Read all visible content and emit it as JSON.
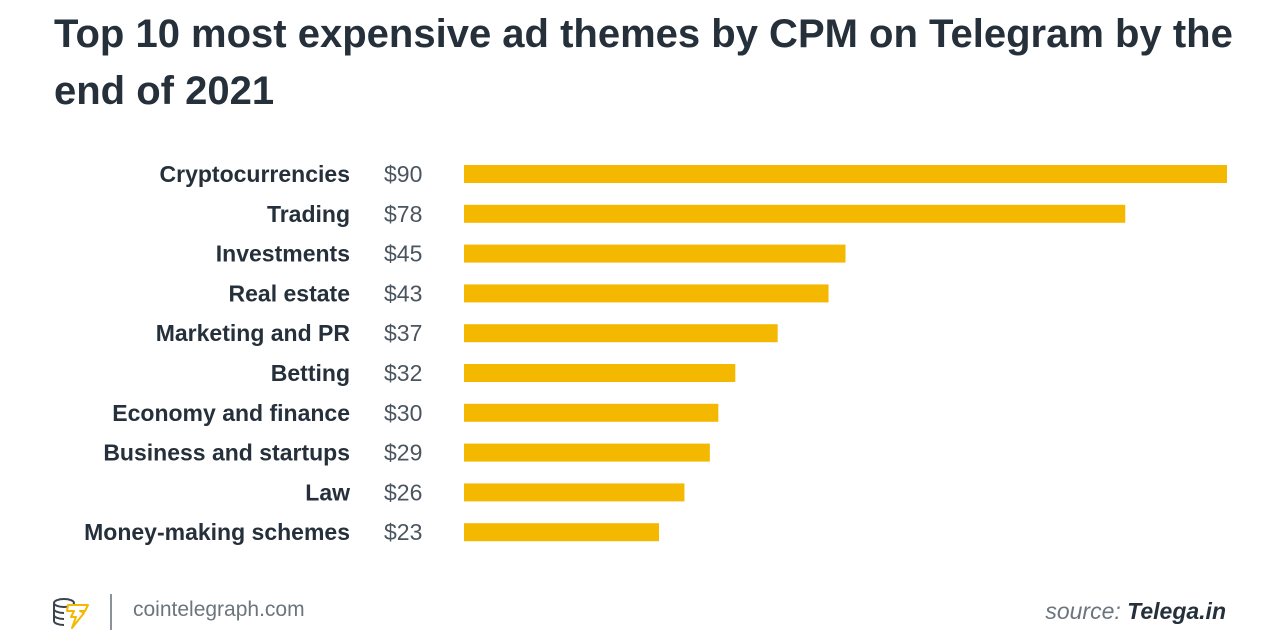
{
  "chart_data": {
    "type": "bar",
    "orientation": "horizontal",
    "title": "Top 10 most expensive ad themes by CPM on Telegram by the end of 2021",
    "categories": [
      "Cryptocurrencies",
      "Trading",
      "Investments",
      "Real estate",
      "Marketing and PR",
      "Betting",
      "Economy and finance",
      "Business and startups",
      "Law",
      "Money-making schemes"
    ],
    "values": [
      90,
      78,
      45,
      43,
      37,
      32,
      30,
      29,
      26,
      23
    ],
    "data_labels": [
      "$90",
      "$78",
      "$45",
      "$43",
      "$37",
      "$32",
      "$30",
      "$29",
      "$26",
      "$23"
    ],
    "xlabel": "",
    "ylabel": "",
    "grid": false,
    "bar_color": "#f5b800"
  },
  "footer": {
    "site": "cointelegraph.com",
    "source_prefix": "source: ",
    "source_name": "Telega.in",
    "logo_color": "#f5b800"
  }
}
